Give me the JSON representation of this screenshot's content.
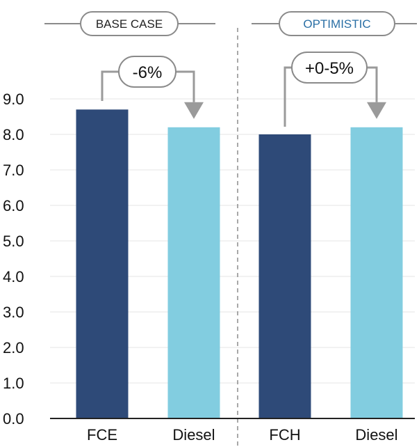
{
  "colors": {
    "dark_bar": "#2e4a78",
    "light_bar": "#82cde0",
    "pill_border": "#8a8a8a",
    "arrow": "#9a9a9a",
    "optimistic_text": "#2a6fa5",
    "base_text": "#222222"
  },
  "chart_data": {
    "type": "bar",
    "ylim": [
      0,
      9
    ],
    "yticks": [
      "0.0",
      "1.0",
      "2.0",
      "3.0",
      "4.0",
      "5.0",
      "6.0",
      "7.0",
      "8.0",
      "9.0"
    ],
    "categories": [
      "FCE",
      "Diesel",
      "FCH",
      "Diesel"
    ],
    "values": [
      8.7,
      8.2,
      8.0,
      8.2
    ],
    "bar_colors": [
      "dark",
      "light",
      "dark",
      "light"
    ],
    "grid": false,
    "groups": [
      {
        "label": "BASE CASE",
        "delta": "-6%",
        "from_index": 0,
        "to_index": 1
      },
      {
        "label": "OPTIMISTIC",
        "delta": "+0-5%",
        "from_index": 2,
        "to_index": 3
      }
    ]
  }
}
